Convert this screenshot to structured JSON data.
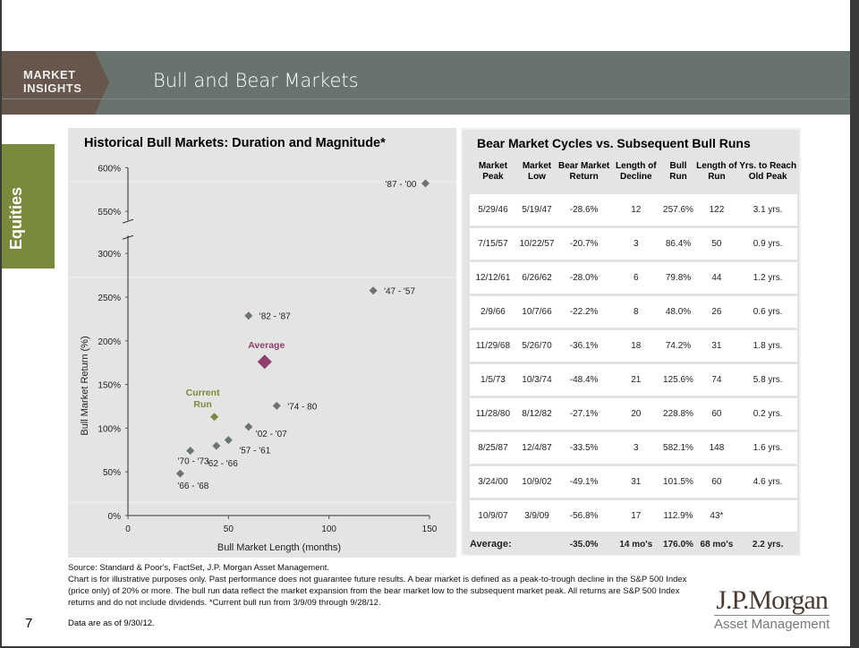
{
  "header": {
    "brand_line1": "MARKET",
    "brand_line2": "INSIGHTS",
    "title": "Bull and Bear Markets"
  },
  "section_tab": "Equities",
  "chart_data": {
    "type": "scatter",
    "title": "Historical Bull Markets: Duration and Magnitude*",
    "xlabel": "Bull Market Length (months)",
    "ylabel": "Bull Market Return (%)",
    "xlim": [
      0,
      150
    ],
    "ylim": [
      0,
      600
    ],
    "axis_break": [
      300,
      550
    ],
    "x_ticks": [
      "0",
      "50",
      "100",
      "150"
    ],
    "y_ticks": [
      "0%",
      "50%",
      "100%",
      "150%",
      "200%",
      "250%",
      "300%",
      "550%",
      "600%"
    ],
    "points": [
      {
        "label": "'87 - '00",
        "x": 148,
        "y": 582.1,
        "kind": "bull"
      },
      {
        "label": "'47 - '57",
        "x": 122,
        "y": 257.6,
        "kind": "bull"
      },
      {
        "label": "'82 - '87",
        "x": 60,
        "y": 228.8,
        "kind": "bull"
      },
      {
        "label": "'74 - 80",
        "x": 74,
        "y": 125.6,
        "kind": "bull"
      },
      {
        "label": "'02 - '07",
        "x": 60,
        "y": 101.5,
        "kind": "bull"
      },
      {
        "label": "'57 - '61",
        "x": 50,
        "y": 86.4,
        "kind": "bull"
      },
      {
        "label": "'62 - '66",
        "x": 44,
        "y": 79.8,
        "kind": "bull"
      },
      {
        "label": "'70 - '73",
        "x": 31,
        "y": 74.2,
        "kind": "bull"
      },
      {
        "label": "'66 - '68",
        "x": 26,
        "y": 48.0,
        "kind": "bull"
      },
      {
        "label": "Average",
        "x": 68,
        "y": 176.0,
        "kind": "average"
      },
      {
        "label": "Current Run",
        "x": 43,
        "y": 112.9,
        "kind": "current"
      }
    ],
    "colors": {
      "bull": "#6b7570",
      "average": "#8f3f6a",
      "current": "#7a8a3c"
    }
  },
  "table": {
    "title": "Bear Market Cycles vs. Subsequent Bull Runs",
    "headers": [
      "Market Peak",
      "Market Low",
      "Bear Market Return",
      "Length of Decline",
      "Bull Run",
      "Length of Run",
      "Yrs. to Reach Old Peak"
    ],
    "rows": [
      [
        "5/29/46",
        "5/19/47",
        "-28.6%",
        "12",
        "257.6%",
        "122",
        "3.1 yrs."
      ],
      [
        "7/15/57",
        "10/22/57",
        "-20.7%",
        "3",
        "86.4%",
        "50",
        "0.9 yrs."
      ],
      [
        "12/12/61",
        "6/26/62",
        "-28.0%",
        "6",
        "79.8%",
        "44",
        "1.2 yrs."
      ],
      [
        "2/9/66",
        "10/7/66",
        "-22.2%",
        "8",
        "48.0%",
        "26",
        "0.6 yrs."
      ],
      [
        "11/29/68",
        "5/26/70",
        "-36.1%",
        "18",
        "74.2%",
        "31",
        "1.8 yrs."
      ],
      [
        "1/5/73",
        "10/3/74",
        "-48.4%",
        "21",
        "125.6%",
        "74",
        "5.8 yrs."
      ],
      [
        "11/28/80",
        "8/12/82",
        "-27.1%",
        "20",
        "228.8%",
        "60",
        "0.2 yrs."
      ],
      [
        "8/25/87",
        "12/4/87",
        "-33.5%",
        "3",
        "582.1%",
        "148",
        "1.6 yrs."
      ],
      [
        "3/24/00",
        "10/9/02",
        "-49.1%",
        "31",
        "101.5%",
        "60",
        "4.6 yrs."
      ],
      [
        "10/9/07",
        "3/9/09",
        "-56.8%",
        "17",
        "112.9%",
        "43*",
        ""
      ]
    ],
    "average": [
      "Average:",
      "",
      "-35.0%",
      "14 mo's",
      "176.0%",
      "68 mo's",
      "2.2 yrs."
    ]
  },
  "footer": {
    "source": "Source: Standard & Poor's, FactSet, J.P. Morgan Asset Management.",
    "disclaimer": "Chart is for illustrative purposes only. Past performance does not guarantee future results. A bear market is defined as a peak-to-trough decline in the S&P 500 Index (price only) of 20% or more. The bull run data reflect the market expansion from the bear market low to the subsequent market peak. All returns are S&P 500 Index returns and do not include dividends. *Current bull run from 3/9/09 through 9/28/12.",
    "page_number": "7",
    "as_of": "Data are as of 9/30/12.",
    "logo_line1": "J.P.Morgan",
    "logo_line2": "Asset Management"
  }
}
